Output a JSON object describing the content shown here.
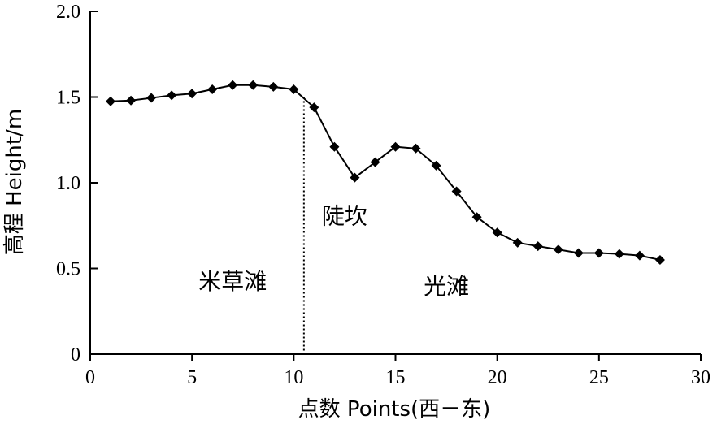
{
  "chart_data": {
    "type": "line",
    "xlabel": "点数 Points(西－东)",
    "ylabel": "高程 Height/m",
    "xlim": [
      0,
      30
    ],
    "ylim": [
      0,
      2.0
    ],
    "x_ticks": [
      0,
      5,
      10,
      15,
      20,
      25,
      30
    ],
    "x_tick_labels": [
      "0",
      "5",
      "10",
      "15",
      "20",
      "25",
      "30"
    ],
    "y_ticks": [
      0,
      0.5,
      1.0,
      1.5,
      2.0
    ],
    "y_tick_labels": [
      "0",
      "0.5",
      "1.0",
      "1.5",
      "2.0"
    ],
    "grid": false,
    "series": [
      {
        "x": [
          1,
          2,
          3,
          4,
          5,
          6,
          7,
          8,
          9,
          10,
          11,
          12,
          13,
          14,
          15,
          16,
          17,
          18,
          19,
          20,
          21,
          22,
          23,
          24,
          25,
          26,
          27,
          28
        ],
        "values": [
          1.475,
          1.48,
          1.495,
          1.51,
          1.52,
          1.545,
          1.57,
          1.57,
          1.56,
          1.545,
          1.44,
          1.21,
          1.03,
          1.12,
          1.21,
          1.2,
          1.1,
          0.95,
          0.8,
          0.71,
          0.65,
          0.63,
          0.61,
          0.59,
          0.59,
          0.585,
          0.575,
          0.55
        ],
        "color": "#000000",
        "marker": "diamond"
      }
    ],
    "reference_lines": [
      {
        "orientation": "vertical",
        "x": 10.5,
        "style": "dotted"
      }
    ],
    "annotations": [
      {
        "text": "米草滩",
        "x": 7.0,
        "y": 0.38
      },
      {
        "text": "陡坎",
        "x": 12.5,
        "y": 0.76
      },
      {
        "text": "光滩",
        "x": 17.5,
        "y": 0.35
      }
    ]
  }
}
